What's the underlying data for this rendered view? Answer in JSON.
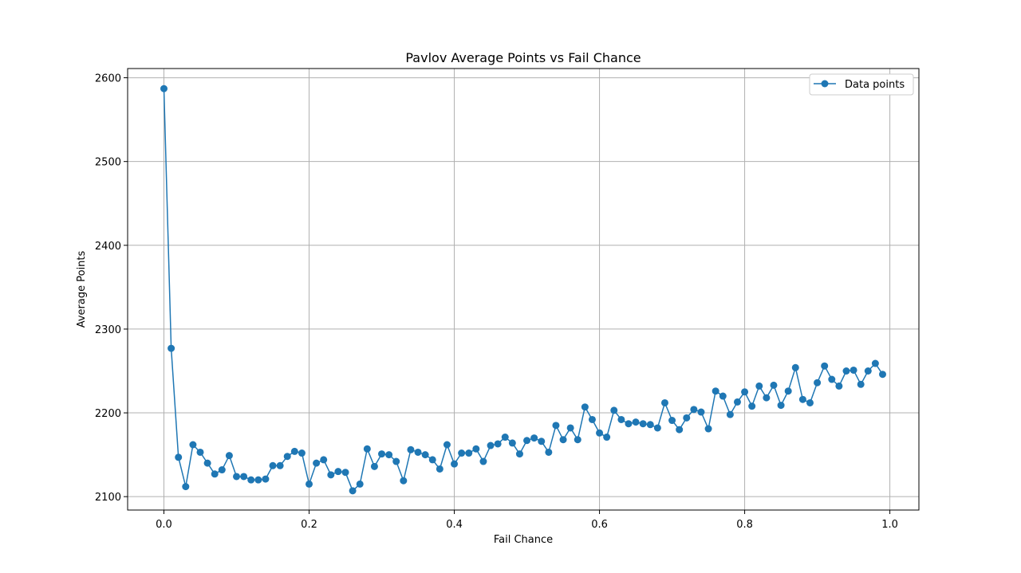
{
  "chart_data": {
    "type": "line",
    "title": "Pavlov Average Points vs Fail Chance",
    "xlabel": "Fail Chance",
    "ylabel": "Average Points",
    "xlim": [
      -0.05,
      1.04
    ],
    "ylim": [
      2084,
      2611
    ],
    "xticks": [
      0.0,
      0.2,
      0.4,
      0.6,
      0.8,
      1.0
    ],
    "xtick_labels": [
      "0.0",
      "0.2",
      "0.4",
      "0.6",
      "0.8",
      "1.0"
    ],
    "yticks": [
      2100,
      2200,
      2300,
      2400,
      2500,
      2600
    ],
    "ytick_labels": [
      "2100",
      "2200",
      "2300",
      "2400",
      "2500",
      "2600"
    ],
    "grid": true,
    "legend_position": "top-right",
    "color": "#1f77b4",
    "series": [
      {
        "name": "Data points",
        "marker": "circle",
        "x": [
          0.0,
          0.01,
          0.02,
          0.03,
          0.04,
          0.05,
          0.06,
          0.07,
          0.08,
          0.09,
          0.1,
          0.11,
          0.12,
          0.13,
          0.14,
          0.15,
          0.16,
          0.17,
          0.18,
          0.19,
          0.2,
          0.21,
          0.22,
          0.23,
          0.24,
          0.25,
          0.26,
          0.27,
          0.28,
          0.29,
          0.3,
          0.31,
          0.32,
          0.33,
          0.34,
          0.35,
          0.36,
          0.37,
          0.38,
          0.39,
          0.4,
          0.41,
          0.42,
          0.43,
          0.44,
          0.45,
          0.46,
          0.47,
          0.48,
          0.49,
          0.5,
          0.51,
          0.52,
          0.53,
          0.54,
          0.55,
          0.56,
          0.57,
          0.58,
          0.59,
          0.6,
          0.61,
          0.62,
          0.63,
          0.64,
          0.65,
          0.66,
          0.67,
          0.68,
          0.69,
          0.7,
          0.71,
          0.72,
          0.73,
          0.74,
          0.75,
          0.76,
          0.77,
          0.78,
          0.79,
          0.8,
          0.81,
          0.82,
          0.83,
          0.84,
          0.85,
          0.86,
          0.87,
          0.88,
          0.89,
          0.9,
          0.91,
          0.92,
          0.93,
          0.94,
          0.95,
          0.96,
          0.97,
          0.98,
          0.99
        ],
        "y": [
          2587,
          2277,
          2147,
          2112,
          2162,
          2153,
          2140,
          2127,
          2132,
          2149,
          2124,
          2124,
          2120,
          2120,
          2121,
          2137,
          2137,
          2148,
          2154,
          2152,
          2115,
          2140,
          2144,
          2126,
          2130,
          2129,
          2107,
          2115,
          2157,
          2136,
          2151,
          2150,
          2142,
          2119,
          2156,
          2153,
          2150,
          2144,
          2133,
          2162,
          2139,
          2152,
          2152,
          2157,
          2142,
          2161,
          2163,
          2171,
          2164,
          2151,
          2167,
          2170,
          2166,
          2153,
          2185,
          2168,
          2182,
          2168,
          2207,
          2192,
          2176,
          2171,
          2203,
          2192,
          2187,
          2189,
          2187,
          2186,
          2182,
          2212,
          2191,
          2180,
          2194,
          2204,
          2201,
          2181,
          2226,
          2220,
          2198,
          2213,
          2225,
          2208,
          2232,
          2218,
          2233,
          2209,
          2226,
          2254,
          2216,
          2212,
          2236,
          2256,
          2240,
          2232,
          2250,
          2251,
          2234,
          2250,
          2259,
          2246
        ]
      }
    ]
  }
}
